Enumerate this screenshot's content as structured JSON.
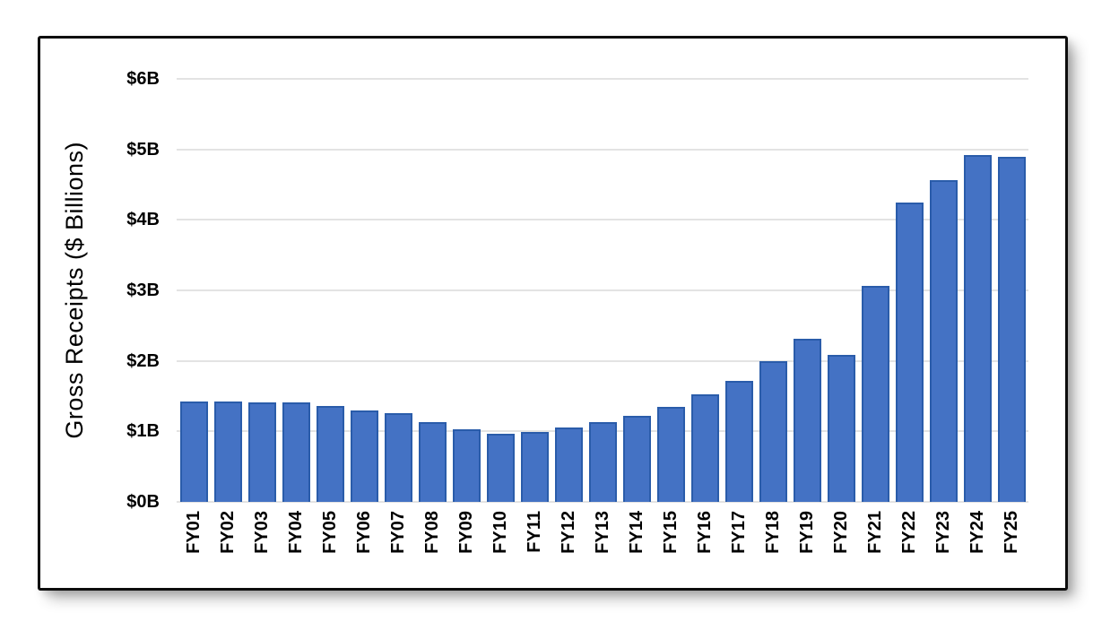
{
  "chart_data": {
    "type": "bar",
    "title": "",
    "xlabel": "",
    "ylabel": "Gross Receipts ($ Billions)",
    "categories": [
      "FY01",
      "FY02",
      "FY03",
      "FY04",
      "FY05",
      "FY06",
      "FY07",
      "FY08",
      "FY09",
      "FY10",
      "FY11",
      "FY12",
      "FY13",
      "FY14",
      "FY15",
      "FY16",
      "FY17",
      "FY18",
      "FY19",
      "FY20",
      "FY21",
      "FY22",
      "FY23",
      "FY24",
      "FY25"
    ],
    "values": [
      1.42,
      1.42,
      1.41,
      1.41,
      1.36,
      1.3,
      1.26,
      1.13,
      1.03,
      0.97,
      0.99,
      1.06,
      1.13,
      1.22,
      1.35,
      1.52,
      1.71,
      2.0,
      2.32,
      2.08,
      3.06,
      4.24,
      4.56,
      4.92,
      4.89
    ],
    "ylim": [
      0,
      6
    ],
    "ytick_labels": [
      "$0B",
      "$1B",
      "$2B",
      "$3B",
      "$4B",
      "$5B",
      "$6B"
    ],
    "grid": true,
    "legend_position": "none",
    "colors": {
      "bar_fill": "#4472C4",
      "bar_border": "#2A5CAA",
      "gridline": "#E3E3E3",
      "tick_text": "#000000",
      "frame_border": "#0D0D0D",
      "background": "#FFFFFF"
    }
  }
}
